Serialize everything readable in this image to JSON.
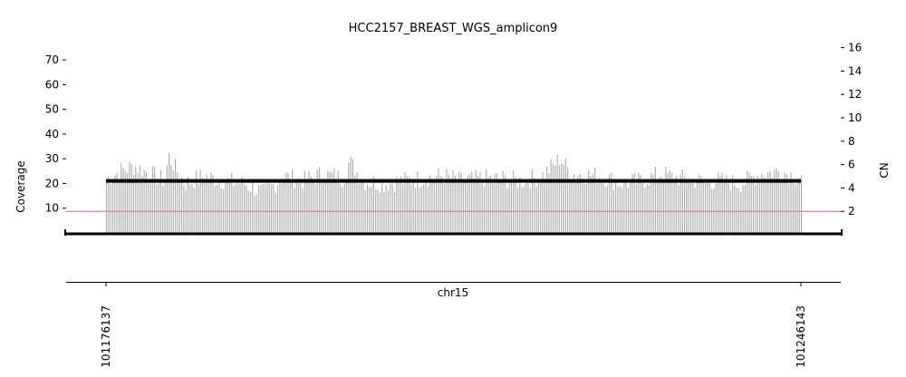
{
  "chart_data": {
    "type": "bar",
    "title": "HCC2157_BREAST_WGS_amplicon9",
    "ylabel": "Coverage",
    "ylabel_right": "CN",
    "xlabel": "chr15",
    "x_ticks": [
      "101176137",
      "101246143"
    ],
    "x_range": [
      101176137,
      101246143
    ],
    "y_ticks_left": [
      10,
      20,
      30,
      40,
      50,
      60,
      70
    ],
    "y_ticks_right": [
      2,
      4,
      6,
      8,
      10,
      12,
      14,
      16
    ],
    "ylim_left": [
      0,
      75
    ],
    "ylim_right": [
      0,
      16.6
    ],
    "coverage_bar_color": "#b0b0b0",
    "cn_segment": {
      "start": 101176137,
      "end": 101246143,
      "cn": 4.6,
      "color": "#000000"
    },
    "reference_line": {
      "cn": 2,
      "color": "#e07070"
    },
    "coverage_profile": [
      {
        "x": 101176137,
        "coverage": 22
      },
      {
        "x": 101177500,
        "coverage": 25
      },
      {
        "x": 101179000,
        "coverage": 27
      },
      {
        "x": 101180500,
        "coverage": 24
      },
      {
        "x": 101182000,
        "coverage": 21
      },
      {
        "x": 101182400,
        "coverage": 31
      },
      {
        "x": 101184000,
        "coverage": 20
      },
      {
        "x": 101186000,
        "coverage": 23
      },
      {
        "x": 101188000,
        "coverage": 21
      },
      {
        "x": 101190000,
        "coverage": 20
      },
      {
        "x": 101192000,
        "coverage": 16
      },
      {
        "x": 101194000,
        "coverage": 23
      },
      {
        "x": 101196000,
        "coverage": 21
      },
      {
        "x": 101198000,
        "coverage": 24
      },
      {
        "x": 101200000,
        "coverage": 22
      },
      {
        "x": 101200600,
        "coverage": 29
      },
      {
        "x": 101202000,
        "coverage": 21
      },
      {
        "x": 101204000,
        "coverage": 20
      },
      {
        "x": 101206000,
        "coverage": 21
      },
      {
        "x": 101208000,
        "coverage": 22
      },
      {
        "x": 101210000,
        "coverage": 23
      },
      {
        "x": 101212000,
        "coverage": 21
      },
      {
        "x": 101214000,
        "coverage": 22
      },
      {
        "x": 101216000,
        "coverage": 22
      },
      {
        "x": 101218000,
        "coverage": 21
      },
      {
        "x": 101220000,
        "coverage": 23
      },
      {
        "x": 101221800,
        "coverage": 30
      },
      {
        "x": 101223000,
        "coverage": 24
      },
      {
        "x": 101226000,
        "coverage": 23
      },
      {
        "x": 101228000,
        "coverage": 20
      },
      {
        "x": 101230000,
        "coverage": 21
      },
      {
        "x": 101232000,
        "coverage": 24
      },
      {
        "x": 101234000,
        "coverage": 22
      },
      {
        "x": 101236000,
        "coverage": 21
      },
      {
        "x": 101238000,
        "coverage": 21
      },
      {
        "x": 101240000,
        "coverage": 20
      },
      {
        "x": 101242000,
        "coverage": 24
      },
      {
        "x": 101244000,
        "coverage": 25
      },
      {
        "x": 101246143,
        "coverage": 22
      }
    ]
  }
}
